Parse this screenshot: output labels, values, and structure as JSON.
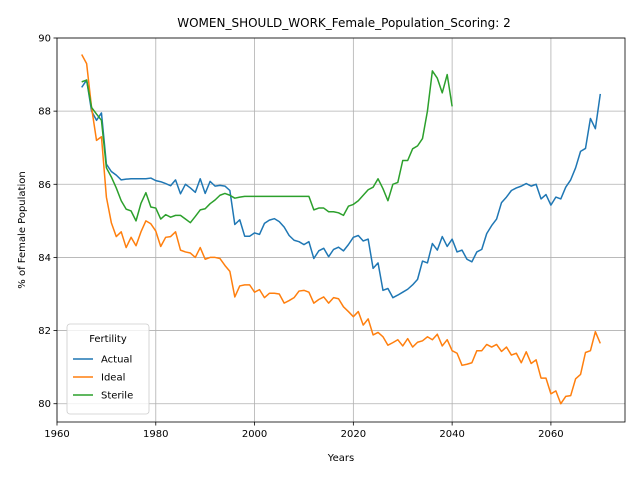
{
  "chart_data": {
    "type": "line",
    "title": "WOMEN_SHOULD_WORK_Female_Population_Scoring: 2",
    "xlabel": "Years",
    "ylabel": "% of Female Population",
    "xlim": [
      1960,
      2075
    ],
    "ylim": [
      79.5,
      90
    ],
    "xticks": [
      1960,
      1980,
      2000,
      2020,
      2040,
      2060
    ],
    "yticks": [
      80,
      82,
      84,
      86,
      88,
      90
    ],
    "grid": true,
    "legend": {
      "title": "Fertility",
      "position": "lower-left"
    },
    "series": [
      {
        "name": "Actual",
        "color": "#1f77b4",
        "points": [
          [
            1965,
            88.65
          ],
          [
            1966,
            88.85
          ],
          [
            1967,
            88.0
          ],
          [
            1968,
            87.75
          ],
          [
            1969,
            87.95
          ],
          [
            1970,
            86.55
          ],
          [
            1971,
            86.35
          ],
          [
            1972,
            86.25
          ],
          [
            1973,
            86.12
          ],
          [
            1974,
            86.14
          ],
          [
            1975,
            86.15
          ],
          [
            1976,
            86.15
          ],
          [
            1977,
            86.15
          ],
          [
            1978,
            86.15
          ],
          [
            1979,
            86.17
          ],
          [
            1980,
            86.1
          ],
          [
            1981,
            86.07
          ],
          [
            1982,
            86.02
          ],
          [
            1983,
            85.96
          ],
          [
            1984,
            86.12
          ],
          [
            1985,
            85.74
          ],
          [
            1986,
            86.0
          ],
          [
            1987,
            85.9
          ],
          [
            1988,
            85.78
          ],
          [
            1989,
            86.15
          ],
          [
            1990,
            85.75
          ],
          [
            1991,
            86.08
          ],
          [
            1992,
            85.95
          ],
          [
            1993,
            85.97
          ],
          [
            1994,
            85.95
          ],
          [
            1995,
            85.83
          ],
          [
            1996,
            84.9
          ],
          [
            1997,
            85.03
          ],
          [
            1998,
            84.58
          ],
          [
            1999,
            84.58
          ],
          [
            2000,
            84.67
          ],
          [
            2001,
            84.63
          ],
          [
            2002,
            84.93
          ],
          [
            2003,
            85.02
          ],
          [
            2004,
            85.06
          ],
          [
            2005,
            84.98
          ],
          [
            2006,
            84.83
          ],
          [
            2007,
            84.6
          ],
          [
            2008,
            84.47
          ],
          [
            2009,
            84.43
          ],
          [
            2010,
            84.35
          ],
          [
            2011,
            84.43
          ],
          [
            2012,
            83.97
          ],
          [
            2013,
            84.18
          ],
          [
            2014,
            84.25
          ],
          [
            2015,
            84.02
          ],
          [
            2016,
            84.22
          ],
          [
            2017,
            84.28
          ],
          [
            2018,
            84.18
          ],
          [
            2019,
            84.35
          ],
          [
            2020,
            84.55
          ],
          [
            2021,
            84.6
          ],
          [
            2022,
            84.45
          ],
          [
            2023,
            84.5
          ],
          [
            2024,
            83.7
          ],
          [
            2025,
            83.85
          ],
          [
            2026,
            83.1
          ],
          [
            2027,
            83.15
          ],
          [
            2028,
            82.9
          ],
          [
            2029,
            82.97
          ],
          [
            2030,
            83.05
          ],
          [
            2031,
            83.13
          ],
          [
            2032,
            83.25
          ],
          [
            2033,
            83.4
          ],
          [
            2034,
            83.9
          ],
          [
            2035,
            83.85
          ],
          [
            2036,
            84.38
          ],
          [
            2037,
            84.2
          ],
          [
            2038,
            84.57
          ],
          [
            2039,
            84.3
          ],
          [
            2040,
            84.5
          ],
          [
            2041,
            84.15
          ],
          [
            2042,
            84.2
          ],
          [
            2043,
            83.95
          ],
          [
            2044,
            83.88
          ],
          [
            2045,
            84.15
          ],
          [
            2046,
            84.22
          ],
          [
            2047,
            84.65
          ],
          [
            2048,
            84.87
          ],
          [
            2049,
            85.05
          ],
          [
            2050,
            85.5
          ],
          [
            2051,
            85.65
          ],
          [
            2052,
            85.83
          ],
          [
            2053,
            85.9
          ],
          [
            2054,
            85.95
          ],
          [
            2055,
            86.02
          ],
          [
            2056,
            85.95
          ],
          [
            2057,
            86.0
          ],
          [
            2058,
            85.6
          ],
          [
            2059,
            85.72
          ],
          [
            2060,
            85.43
          ],
          [
            2061,
            85.65
          ],
          [
            2062,
            85.6
          ],
          [
            2063,
            85.92
          ],
          [
            2064,
            86.12
          ],
          [
            2065,
            86.45
          ],
          [
            2066,
            86.9
          ],
          [
            2067,
            86.98
          ],
          [
            2068,
            87.8
          ],
          [
            2069,
            87.52
          ],
          [
            2070,
            88.47
          ]
        ]
      },
      {
        "name": "Ideal",
        "color": "#ff7f0e",
        "points": [
          [
            1965,
            89.55
          ],
          [
            1966,
            89.3
          ],
          [
            1967,
            88.1
          ],
          [
            1968,
            87.2
          ],
          [
            1969,
            87.3
          ],
          [
            1970,
            85.65
          ],
          [
            1971,
            84.95
          ],
          [
            1972,
            84.57
          ],
          [
            1973,
            84.7
          ],
          [
            1974,
            84.27
          ],
          [
            1975,
            84.55
          ],
          [
            1976,
            84.32
          ],
          [
            1977,
            84.7
          ],
          [
            1978,
            85.0
          ],
          [
            1979,
            84.92
          ],
          [
            1980,
            84.72
          ],
          [
            1981,
            84.3
          ],
          [
            1982,
            84.55
          ],
          [
            1983,
            84.57
          ],
          [
            1984,
            84.7
          ],
          [
            1985,
            84.2
          ],
          [
            1986,
            84.15
          ],
          [
            1987,
            84.12
          ],
          [
            1988,
            84.0
          ],
          [
            1989,
            84.27
          ],
          [
            1990,
            83.95
          ],
          [
            1991,
            84.0
          ],
          [
            1992,
            84.0
          ],
          [
            1993,
            83.97
          ],
          [
            1994,
            83.78
          ],
          [
            1995,
            83.62
          ],
          [
            1996,
            82.92
          ],
          [
            1997,
            83.22
          ],
          [
            1998,
            83.25
          ],
          [
            1999,
            83.25
          ],
          [
            2000,
            83.05
          ],
          [
            2001,
            83.12
          ],
          [
            2002,
            82.9
          ],
          [
            2003,
            83.02
          ],
          [
            2004,
            83.02
          ],
          [
            2005,
            83.0
          ],
          [
            2006,
            82.75
          ],
          [
            2007,
            82.82
          ],
          [
            2008,
            82.9
          ],
          [
            2009,
            83.08
          ],
          [
            2010,
            83.1
          ],
          [
            2011,
            83.05
          ],
          [
            2012,
            82.75
          ],
          [
            2013,
            82.85
          ],
          [
            2014,
            82.92
          ],
          [
            2015,
            82.75
          ],
          [
            2016,
            82.9
          ],
          [
            2017,
            82.87
          ],
          [
            2018,
            82.65
          ],
          [
            2019,
            82.52
          ],
          [
            2020,
            82.38
          ],
          [
            2021,
            82.52
          ],
          [
            2022,
            82.15
          ],
          [
            2023,
            82.32
          ],
          [
            2024,
            81.88
          ],
          [
            2025,
            81.95
          ],
          [
            2026,
            81.83
          ],
          [
            2027,
            81.6
          ],
          [
            2028,
            81.67
          ],
          [
            2029,
            81.75
          ],
          [
            2030,
            81.58
          ],
          [
            2031,
            81.78
          ],
          [
            2032,
            81.55
          ],
          [
            2033,
            81.68
          ],
          [
            2034,
            81.72
          ],
          [
            2035,
            81.83
          ],
          [
            2036,
            81.75
          ],
          [
            2037,
            81.9
          ],
          [
            2038,
            81.58
          ],
          [
            2039,
            81.75
          ],
          [
            2040,
            81.45
          ],
          [
            2041,
            81.38
          ],
          [
            2042,
            81.05
          ],
          [
            2043,
            81.08
          ],
          [
            2044,
            81.12
          ],
          [
            2045,
            81.45
          ],
          [
            2046,
            81.45
          ],
          [
            2047,
            81.62
          ],
          [
            2048,
            81.55
          ],
          [
            2049,
            81.62
          ],
          [
            2050,
            81.43
          ],
          [
            2051,
            81.55
          ],
          [
            2052,
            81.33
          ],
          [
            2053,
            81.38
          ],
          [
            2054,
            81.12
          ],
          [
            2055,
            81.42
          ],
          [
            2056,
            81.1
          ],
          [
            2057,
            81.2
          ],
          [
            2058,
            80.7
          ],
          [
            2059,
            80.7
          ],
          [
            2060,
            80.27
          ],
          [
            2061,
            80.35
          ],
          [
            2062,
            80.0
          ],
          [
            2063,
            80.2
          ],
          [
            2064,
            80.22
          ],
          [
            2065,
            80.68
          ],
          [
            2066,
            80.8
          ],
          [
            2067,
            81.4
          ],
          [
            2068,
            81.45
          ],
          [
            2069,
            81.97
          ],
          [
            2070,
            81.65
          ]
        ]
      },
      {
        "name": "Sterile",
        "color": "#2ca02c",
        "points": [
          [
            1965,
            88.8
          ],
          [
            1966,
            88.85
          ],
          [
            1967,
            88.1
          ],
          [
            1968,
            87.92
          ],
          [
            1969,
            87.75
          ],
          [
            1970,
            86.45
          ],
          [
            1971,
            86.2
          ],
          [
            1972,
            85.9
          ],
          [
            1973,
            85.55
          ],
          [
            1974,
            85.32
          ],
          [
            1975,
            85.27
          ],
          [
            1976,
            85.0
          ],
          [
            1977,
            85.48
          ],
          [
            1978,
            85.77
          ],
          [
            1979,
            85.38
          ],
          [
            1980,
            85.35
          ],
          [
            1981,
            85.05
          ],
          [
            1982,
            85.17
          ],
          [
            1983,
            85.1
          ],
          [
            1984,
            85.15
          ],
          [
            1985,
            85.15
          ],
          [
            1986,
            85.05
          ],
          [
            1987,
            84.95
          ],
          [
            1988,
            85.12
          ],
          [
            1989,
            85.3
          ],
          [
            1990,
            85.33
          ],
          [
            1991,
            85.47
          ],
          [
            1992,
            85.57
          ],
          [
            1993,
            85.7
          ],
          [
            1994,
            85.75
          ],
          [
            1995,
            85.7
          ],
          [
            1996,
            85.62
          ],
          [
            1997,
            85.65
          ],
          [
            1998,
            85.67
          ],
          [
            1999,
            85.67
          ],
          [
            2000,
            85.67
          ],
          [
            2001,
            85.67
          ],
          [
            2002,
            85.67
          ],
          [
            2003,
            85.67
          ],
          [
            2004,
            85.67
          ],
          [
            2005,
            85.67
          ],
          [
            2006,
            85.67
          ],
          [
            2007,
            85.67
          ],
          [
            2008,
            85.67
          ],
          [
            2009,
            85.67
          ],
          [
            2010,
            85.67
          ],
          [
            2011,
            85.67
          ],
          [
            2012,
            85.3
          ],
          [
            2013,
            85.35
          ],
          [
            2014,
            85.35
          ],
          [
            2015,
            85.25
          ],
          [
            2016,
            85.25
          ],
          [
            2017,
            85.22
          ],
          [
            2018,
            85.15
          ],
          [
            2019,
            85.4
          ],
          [
            2020,
            85.45
          ],
          [
            2021,
            85.55
          ],
          [
            2022,
            85.7
          ],
          [
            2023,
            85.85
          ],
          [
            2024,
            85.92
          ],
          [
            2025,
            86.15
          ],
          [
            2026,
            85.88
          ],
          [
            2027,
            85.55
          ],
          [
            2028,
            86.0
          ],
          [
            2029,
            86.05
          ],
          [
            2030,
            86.65
          ],
          [
            2031,
            86.65
          ],
          [
            2032,
            86.97
          ],
          [
            2033,
            87.05
          ],
          [
            2034,
            87.25
          ],
          [
            2035,
            88.0
          ],
          [
            2036,
            89.1
          ],
          [
            2037,
            88.9
          ],
          [
            2038,
            88.5
          ],
          [
            2039,
            89.0
          ],
          [
            2040,
            88.13
          ]
        ]
      }
    ]
  }
}
